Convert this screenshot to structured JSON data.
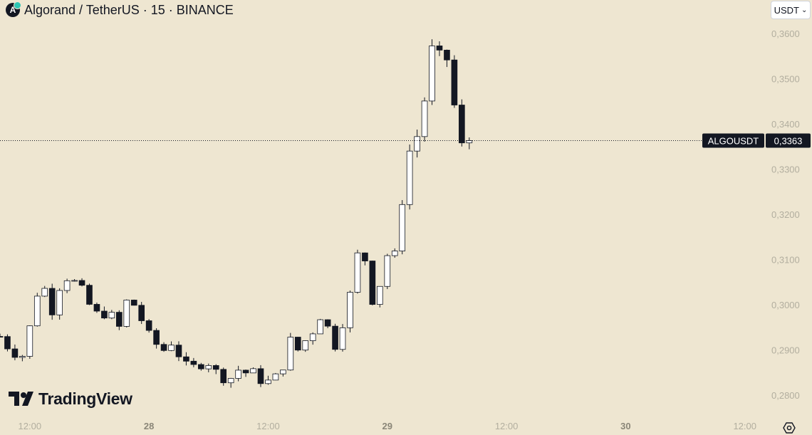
{
  "header": {
    "title": "Algorand / TetherUS · 15 · BINANCE",
    "logo_icon": "algorand-logo-icon",
    "logo_glyph": "A"
  },
  "currency": {
    "label": "USDT",
    "icon": "chevron-down-icon"
  },
  "branding": {
    "text": "TradingView",
    "icon": "tradingview-logo-icon"
  },
  "settings": {
    "icon": "settings-gear-icon"
  },
  "colors": {
    "background": "#eee6d1",
    "candle": "#131722",
    "axis_text": "#b2ae9f",
    "label_bg": "#131722",
    "label_text": "#ffffff"
  },
  "chart_data": {
    "type": "candlestick",
    "symbol": "ALGOUSDT",
    "interval": "15",
    "exchange": "BINANCE",
    "last_price": 0.3363,
    "last_price_label": "0,3363",
    "y_ticks": [
      {
        "value": 0.36,
        "label": "0,3600"
      },
      {
        "value": 0.35,
        "label": "0,3500"
      },
      {
        "value": 0.34,
        "label": "0,3400"
      },
      {
        "value": 0.33,
        "label": "0,3300"
      },
      {
        "value": 0.32,
        "label": "0,3200"
      },
      {
        "value": 0.31,
        "label": "0,3100"
      },
      {
        "value": 0.3,
        "label": "0,3000"
      },
      {
        "value": 0.29,
        "label": "0,2900"
      },
      {
        "value": 0.28,
        "label": "0,2800"
      }
    ],
    "x_ticks": [
      {
        "t": 1,
        "label": "12:00",
        "bold": false
      },
      {
        "t": 5,
        "label": "28",
        "bold": true
      },
      {
        "t": 9,
        "label": "12:00",
        "bold": false
      },
      {
        "t": 13,
        "label": "29",
        "bold": true
      },
      {
        "t": 17,
        "label": "12:00",
        "bold": false
      },
      {
        "t": 21,
        "label": "30",
        "bold": true
      },
      {
        "t": 25,
        "label": "12:00",
        "bold": false
      }
    ],
    "x_range": [
      0,
      25.7
    ],
    "y_range": [
      0.2753,
      0.3674
    ],
    "bar_interval_hours": 0.25,
    "path": [
      [
        0.0,
        0.293
      ],
      [
        0.4,
        0.2895
      ],
      [
        0.9,
        0.2885
      ],
      [
        1.0,
        0.295
      ],
      [
        1.2,
        0.3
      ],
      [
        1.35,
        0.3075
      ],
      [
        1.5,
        0.3035
      ],
      [
        1.7,
        0.297
      ],
      [
        1.9,
        0.304
      ],
      [
        2.15,
        0.304
      ],
      [
        2.25,
        0.306
      ],
      [
        2.5,
        0.305
      ],
      [
        2.7,
        0.304
      ],
      [
        2.9,
        0.301
      ],
      [
        3.2,
        0.298
      ],
      [
        3.4,
        0.298
      ],
      [
        3.7,
        0.298
      ],
      [
        4.0,
        0.295
      ],
      [
        4.35,
        0.303
      ],
      [
        4.5,
        0.3
      ],
      [
        4.8,
        0.296
      ],
      [
        5.1,
        0.292
      ],
      [
        5.5,
        0.29
      ],
      [
        5.8,
        0.292
      ],
      [
        6.0,
        0.289
      ],
      [
        6.3,
        0.286
      ],
      [
        6.7,
        0.2865
      ],
      [
        6.9,
        0.288
      ],
      [
        7.4,
        0.284
      ],
      [
        7.7,
        0.2835
      ],
      [
        8.05,
        0.286
      ],
      [
        8.2,
        0.285
      ],
      [
        8.5,
        0.285
      ],
      [
        8.8,
        0.283
      ],
      [
        9.1,
        0.283
      ],
      [
        9.4,
        0.285
      ],
      [
        9.6,
        0.288
      ],
      [
        9.8,
        0.2935
      ],
      [
        10.0,
        0.29
      ],
      [
        10.3,
        0.2925
      ],
      [
        10.6,
        0.295
      ],
      [
        10.7,
        0.298
      ],
      [
        11.0,
        0.295
      ],
      [
        11.2,
        0.29
      ],
      [
        11.3,
        0.292
      ],
      [
        11.5,
        0.296
      ],
      [
        11.7,
        0.301
      ],
      [
        11.9,
        0.306
      ],
      [
        12.05,
        0.3135
      ],
      [
        12.2,
        0.311
      ],
      [
        12.35,
        0.308
      ],
      [
        12.5,
        0.301
      ],
      [
        12.7,
        0.3
      ],
      [
        12.8,
        0.309
      ],
      [
        12.9,
        0.313
      ],
      [
        13.05,
        0.31
      ],
      [
        13.2,
        0.308
      ],
      [
        13.3,
        0.314
      ],
      [
        13.4,
        0.321
      ],
      [
        13.6,
        0.325
      ],
      [
        13.7,
        0.33
      ],
      [
        13.8,
        0.338
      ],
      [
        13.9,
        0.344
      ],
      [
        14.05,
        0.334
      ],
      [
        14.15,
        0.338
      ],
      [
        14.3,
        0.349
      ],
      [
        14.4,
        0.357
      ],
      [
        14.55,
        0.356
      ],
      [
        14.7,
        0.3555
      ],
      [
        14.8,
        0.354
      ],
      [
        14.95,
        0.3565
      ],
      [
        15.1,
        0.35
      ],
      [
        15.25,
        0.344
      ],
      [
        15.4,
        0.34
      ],
      [
        15.5,
        0.335
      ],
      [
        15.6,
        0.3335
      ],
      [
        15.75,
        0.337
      ],
      [
        15.85,
        0.3363
      ]
    ]
  }
}
